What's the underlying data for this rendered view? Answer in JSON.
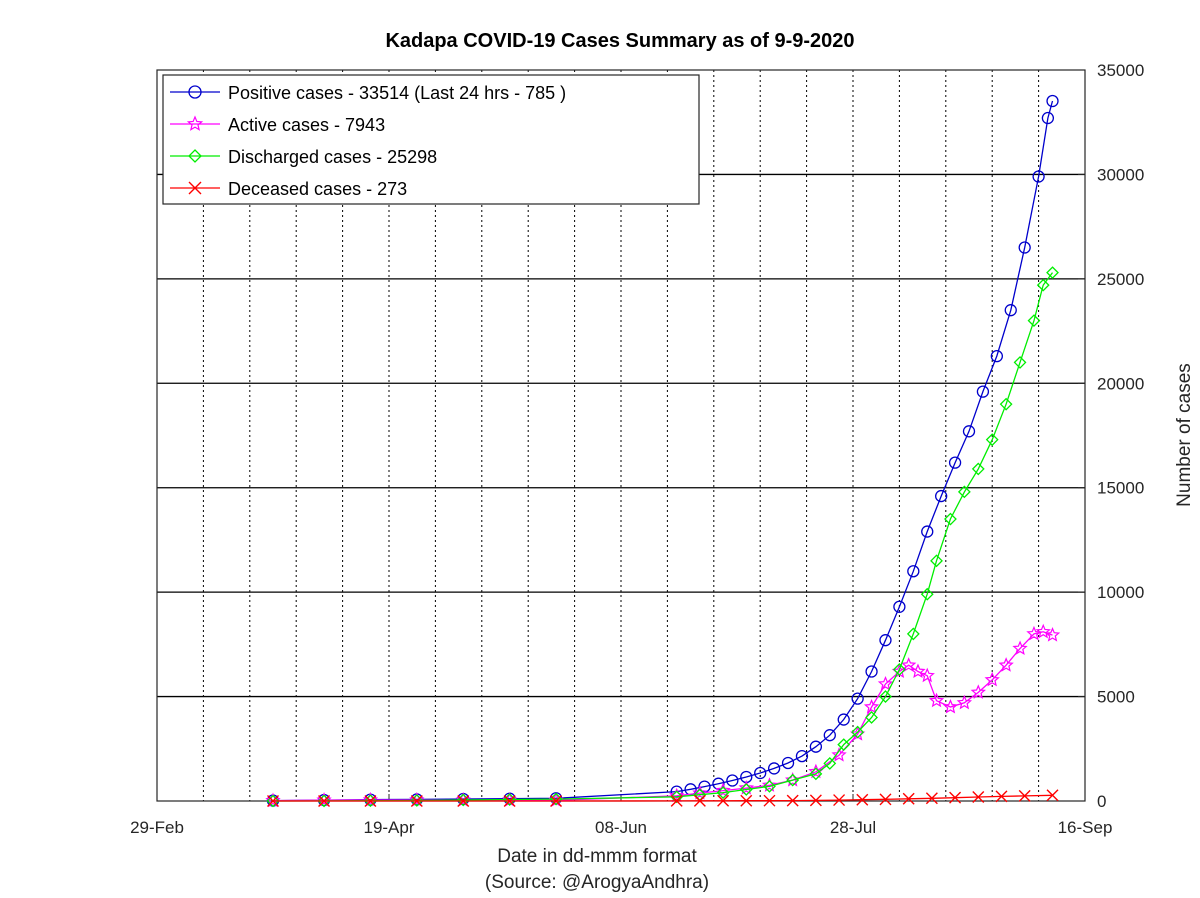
{
  "chart_data": {
    "type": "line",
    "title": "Kadapa COVID-19 Cases Summary as of 9-9-2020",
    "xlabel": "Date in dd-mmm format",
    "xlabel_note": "(Source: @ArogyaAndhra)",
    "ylabel": "Number of cases",
    "x_ticks": [
      "29-Feb",
      "19-Apr",
      "08-Jun",
      "28-Jul",
      "16-Sep"
    ],
    "x_range": [
      "29-Feb",
      "16-Sep"
    ],
    "ylim": [
      0,
      35000
    ],
    "y_ticks": [
      "0",
      "5000",
      "10000",
      "15000",
      "20000",
      "25000",
      "30000",
      "35000"
    ],
    "y_axis_side": "right",
    "grid": "on",
    "legend_position": "top-left",
    "series": [
      {
        "name": "Positive cases - 33514 (Last 24 hrs - 785 )",
        "color": "#0000cc",
        "marker": "circle",
        "points": [
          [
            "2020-03-25",
            20
          ],
          [
            "2020-04-05",
            45
          ],
          [
            "2020-04-15",
            65
          ],
          [
            "2020-04-25",
            75
          ],
          [
            "2020-05-05",
            95
          ],
          [
            "2020-05-15",
            110
          ],
          [
            "2020-05-25",
            130
          ],
          [
            "2020-06-20",
            450
          ],
          [
            "2020-06-23",
            560
          ],
          [
            "2020-06-26",
            690
          ],
          [
            "2020-06-29",
            830
          ],
          [
            "2020-07-02",
            980
          ],
          [
            "2020-07-05",
            1150
          ],
          [
            "2020-07-08",
            1340
          ],
          [
            "2020-07-11",
            1560
          ],
          [
            "2020-07-14",
            1820
          ],
          [
            "2020-07-17",
            2150
          ],
          [
            "2020-07-20",
            2600
          ],
          [
            "2020-07-23",
            3150
          ],
          [
            "2020-07-26",
            3900
          ],
          [
            "2020-07-29",
            4900
          ],
          [
            "2020-08-01",
            6200
          ],
          [
            "2020-08-04",
            7700
          ],
          [
            "2020-08-07",
            9300
          ],
          [
            "2020-08-10",
            11000
          ],
          [
            "2020-08-13",
            12900
          ],
          [
            "2020-08-16",
            14600
          ],
          [
            "2020-08-19",
            16200
          ],
          [
            "2020-08-22",
            17700
          ],
          [
            "2020-08-25",
            19600
          ],
          [
            "2020-08-28",
            21300
          ],
          [
            "2020-08-31",
            23500
          ],
          [
            "2020-09-03",
            26500
          ],
          [
            "2020-09-06",
            29900
          ],
          [
            "2020-09-08",
            32700
          ],
          [
            "2020-09-09",
            33514
          ]
        ]
      },
      {
        "name": "Active cases - 7943",
        "color": "#ff00ff",
        "marker": "star",
        "points": [
          [
            "2020-03-25",
            20
          ],
          [
            "2020-04-05",
            40
          ],
          [
            "2020-04-15",
            50
          ],
          [
            "2020-04-25",
            50
          ],
          [
            "2020-05-05",
            45
          ],
          [
            "2020-05-15",
            40
          ],
          [
            "2020-05-25",
            35
          ],
          [
            "2020-06-20",
            250
          ],
          [
            "2020-06-25",
            380
          ],
          [
            "2020-06-30",
            500
          ],
          [
            "2020-07-05",
            620
          ],
          [
            "2020-07-10",
            750
          ],
          [
            "2020-07-15",
            1000
          ],
          [
            "2020-07-20",
            1400
          ],
          [
            "2020-07-25",
            2200
          ],
          [
            "2020-07-29",
            3200
          ],
          [
            "2020-08-01",
            4500
          ],
          [
            "2020-08-04",
            5600
          ],
          [
            "2020-08-07",
            6200
          ],
          [
            "2020-08-09",
            6500
          ],
          [
            "2020-08-11",
            6200
          ],
          [
            "2020-08-13",
            6000
          ],
          [
            "2020-08-15",
            4800
          ],
          [
            "2020-08-18",
            4500
          ],
          [
            "2020-08-21",
            4700
          ],
          [
            "2020-08-24",
            5200
          ],
          [
            "2020-08-27",
            5800
          ],
          [
            "2020-08-30",
            6500
          ],
          [
            "2020-09-02",
            7300
          ],
          [
            "2020-09-05",
            8000
          ],
          [
            "2020-09-07",
            8100
          ],
          [
            "2020-09-09",
            7943
          ]
        ]
      },
      {
        "name": "Discharged cases - 25298",
        "color": "#00ee00",
        "marker": "diamond",
        "points": [
          [
            "2020-03-25",
            0
          ],
          [
            "2020-04-05",
            5
          ],
          [
            "2020-04-15",
            15
          ],
          [
            "2020-04-25",
            25
          ],
          [
            "2020-05-05",
            50
          ],
          [
            "2020-05-15",
            70
          ],
          [
            "2020-05-25",
            90
          ],
          [
            "2020-06-20",
            200
          ],
          [
            "2020-06-25",
            300
          ],
          [
            "2020-06-30",
            400
          ],
          [
            "2020-07-05",
            550
          ],
          [
            "2020-07-10",
            700
          ],
          [
            "2020-07-15",
            1000
          ],
          [
            "2020-07-20",
            1300
          ],
          [
            "2020-07-23",
            1800
          ],
          [
            "2020-07-26",
            2700
          ],
          [
            "2020-07-29",
            3300
          ],
          [
            "2020-08-01",
            4000
          ],
          [
            "2020-08-04",
            5000
          ],
          [
            "2020-08-07",
            6300
          ],
          [
            "2020-08-10",
            8000
          ],
          [
            "2020-08-13",
            9900
          ],
          [
            "2020-08-15",
            11500
          ],
          [
            "2020-08-18",
            13500
          ],
          [
            "2020-08-21",
            14800
          ],
          [
            "2020-08-24",
            15900
          ],
          [
            "2020-08-27",
            17300
          ],
          [
            "2020-08-30",
            19000
          ],
          [
            "2020-09-02",
            21000
          ],
          [
            "2020-09-05",
            23000
          ],
          [
            "2020-09-07",
            24700
          ],
          [
            "2020-09-09",
            25298
          ]
        ]
      },
      {
        "name": "Deceased cases - 273",
        "color": "#ff0000",
        "marker": "x",
        "points": [
          [
            "2020-03-25",
            0
          ],
          [
            "2020-04-05",
            0
          ],
          [
            "2020-04-15",
            0
          ],
          [
            "2020-04-25",
            0
          ],
          [
            "2020-05-05",
            0
          ],
          [
            "2020-05-15",
            0
          ],
          [
            "2020-05-25",
            0
          ],
          [
            "2020-06-20",
            5
          ],
          [
            "2020-06-25",
            8
          ],
          [
            "2020-06-30",
            10
          ],
          [
            "2020-07-05",
            12
          ],
          [
            "2020-07-10",
            15
          ],
          [
            "2020-07-15",
            20
          ],
          [
            "2020-07-20",
            30
          ],
          [
            "2020-07-25",
            45
          ],
          [
            "2020-07-30",
            60
          ],
          [
            "2020-08-04",
            80
          ],
          [
            "2020-08-09",
            105
          ],
          [
            "2020-08-14",
            130
          ],
          [
            "2020-08-19",
            160
          ],
          [
            "2020-08-24",
            190
          ],
          [
            "2020-08-29",
            220
          ],
          [
            "2020-09-03",
            245
          ],
          [
            "2020-09-09",
            273
          ]
        ]
      }
    ]
  }
}
